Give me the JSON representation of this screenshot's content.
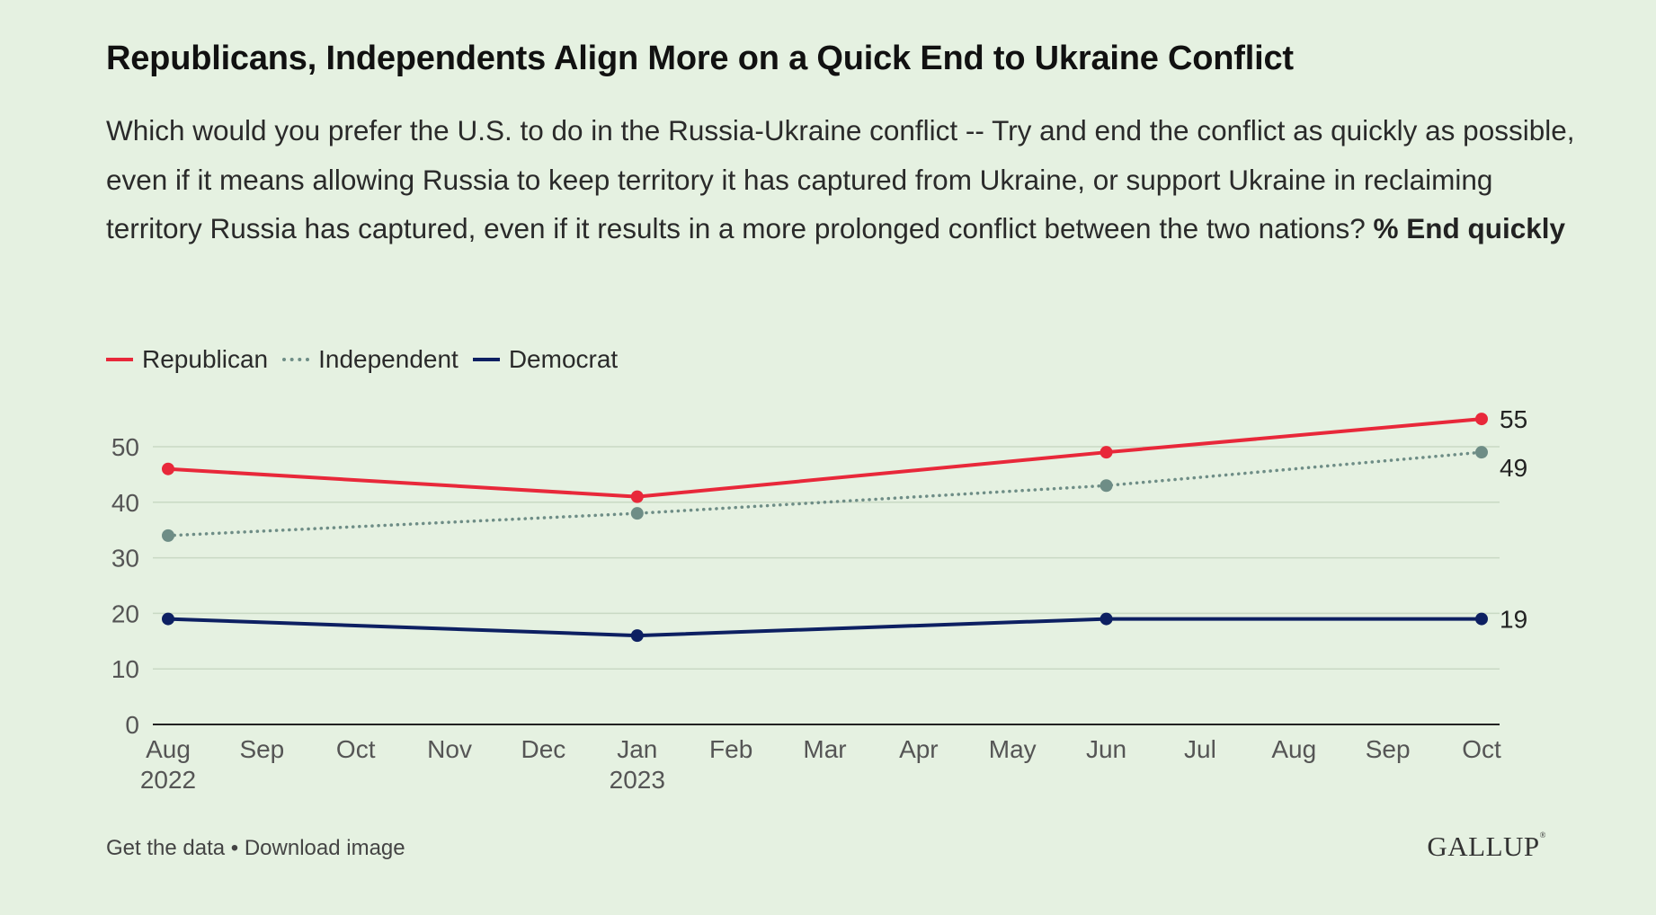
{
  "title": "Republicans, Independents Align More on a Quick End to Ukraine Conflict",
  "subtitle": "Which would you prefer the U.S. to do in the Russia-Ukraine conflict -- Try and end the conflict as quickly as possible, even if it means allowing Russia to keep territory it has captured from Ukraine, or support Ukraine in reclaiming territory Russia has captured, even if it results in a more prolonged conflict between the two nations?",
  "subtitle_bold": "% End quickly",
  "footer": {
    "get_data": "Get the data",
    "separator": "•",
    "download": "Download image"
  },
  "logo": "GALLUP",
  "chart_data": {
    "type": "line",
    "x_ticks": [
      "Aug",
      "Sep",
      "Oct",
      "Nov",
      "Dec",
      "Jan",
      "Feb",
      "Mar",
      "Apr",
      "May",
      "Jun",
      "Jul",
      "Aug",
      "Sep",
      "Oct"
    ],
    "x_tick_years": {
      "0": "2022",
      "5": "2023"
    },
    "x": [
      "2022-08",
      "2023-01",
      "2023-06",
      "2023-10"
    ],
    "ylim": [
      0,
      55
    ],
    "y_ticks": [
      0,
      10,
      20,
      30,
      40,
      50
    ],
    "grid": true,
    "legend_position": "top-left",
    "series": [
      {
        "name": "Republican",
        "values": [
          46,
          41,
          49,
          55
        ],
        "color": "#e8283a",
        "style": "solid",
        "end_label": "55"
      },
      {
        "name": "Independent",
        "values": [
          34,
          38,
          43,
          49
        ],
        "color": "#6e8d86",
        "style": "dotted",
        "end_label": "49"
      },
      {
        "name": "Democrat",
        "values": [
          19,
          16,
          19,
          19
        ],
        "color": "#0d2062",
        "style": "solid",
        "end_label": "19"
      }
    ]
  }
}
